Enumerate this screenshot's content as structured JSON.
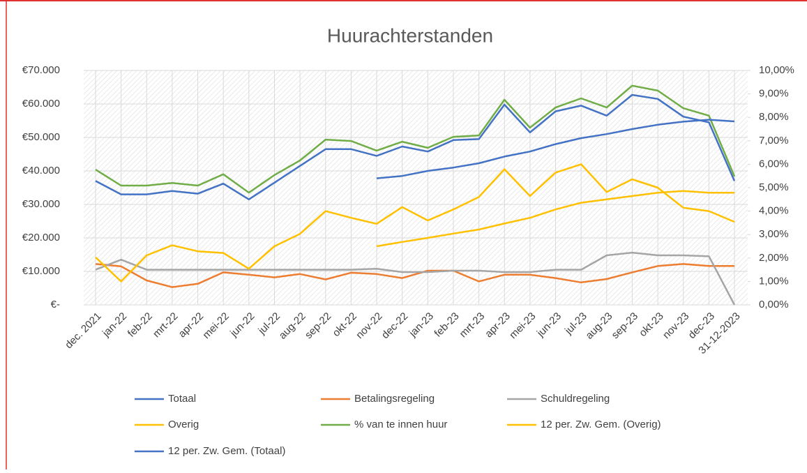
{
  "chart_data": {
    "type": "line",
    "title": "Huurachterstanden",
    "categories": [
      "dec. 2021",
      "jan-22",
      "feb-22",
      "mrt-22",
      "apr-22",
      "mei-22",
      "jun-22",
      "jul-22",
      "aug-22",
      "sep-22",
      "okt-22",
      "nov-22",
      "dec-22",
      "jan-23",
      "feb-23",
      "mrt-23",
      "apr-23",
      "mei-23",
      "jun-23",
      "jul-23",
      "aug-23",
      "sep-23",
      "okt-23",
      "nov-23",
      "dec-23",
      "31-12-2023"
    ],
    "series": [
      {
        "name": "Totaal",
        "color": "#4472c4",
        "values": [
          37000,
          33000,
          33000,
          34000,
          33200,
          36200,
          31500,
          36500,
          41500,
          46500,
          46500,
          44500,
          47300,
          45800,
          49200,
          49500,
          59800,
          51500,
          57800,
          59500,
          56500,
          62700,
          61500,
          56200,
          54500,
          37000
        ]
      },
      {
        "name": "Betalingsregeling",
        "color": "#ed7d31",
        "values": [
          12200,
          11500,
          7300,
          5300,
          6300,
          9700,
          9000,
          8200,
          9200,
          7600,
          9600,
          9200,
          8000,
          10200,
          10200,
          7000,
          9000,
          9000,
          8000,
          6700,
          7700,
          9700,
          11600,
          12200,
          11600,
          11600
        ]
      },
      {
        "name": "Schuldregeling",
        "color": "#a5a5a5",
        "values": [
          10500,
          13500,
          10500,
          10500,
          10500,
          10500,
          10500,
          10500,
          10500,
          10500,
          10500,
          10800,
          9800,
          9800,
          10200,
          10200,
          9800,
          9800,
          10500,
          10500,
          14800,
          15600,
          14800,
          14800,
          14500,
          0
        ]
      },
      {
        "name": "Overig",
        "color": "#ffc000",
        "values": [
          14200,
          7000,
          14800,
          17800,
          16000,
          15500,
          10800,
          17500,
          21200,
          28000,
          26000,
          24200,
          29200,
          25200,
          28500,
          32200,
          40500,
          32500,
          39500,
          42000,
          33700,
          37500,
          35000,
          29000,
          28000,
          24800
        ]
      },
      {
        "name": "% van te innen huur",
        "color": "#70ad47",
        "axis": "y2",
        "values": [
          5.77,
          5.09,
          5.09,
          5.2,
          5.09,
          5.57,
          4.79,
          5.54,
          6.16,
          7.05,
          6.99,
          6.58,
          6.96,
          6.7,
          7.17,
          7.23,
          8.75,
          7.56,
          8.42,
          8.81,
          8.42,
          9.35,
          9.14,
          8.39,
          8.07,
          5.48
        ]
      },
      {
        "name": "12 per. Zw. Gem. (Overig)",
        "color": "#ffc000",
        "values": [
          null,
          null,
          null,
          null,
          null,
          null,
          null,
          null,
          null,
          null,
          null,
          17500,
          18800,
          20000,
          21300,
          22500,
          24300,
          26000,
          28500,
          30500,
          31500,
          32500,
          33500,
          34000,
          33500,
          33500
        ]
      },
      {
        "name": "12 per. Zw. Gem. (Totaal)",
        "color": "#4472c4",
        "values": [
          null,
          null,
          null,
          null,
          null,
          null,
          null,
          null,
          null,
          null,
          null,
          37800,
          38500,
          40000,
          41000,
          42300,
          44300,
          45800,
          48000,
          49800,
          51000,
          52500,
          53800,
          54700,
          55300,
          54800
        ]
      }
    ],
    "ylim": [
      0,
      70000
    ],
    "yticks": [
      {
        "value": 0,
        "label": "€-"
      },
      {
        "value": 10000,
        "label": "€10.000"
      },
      {
        "value": 20000,
        "label": "€20.000"
      },
      {
        "value": 30000,
        "label": "€30.000"
      },
      {
        "value": 40000,
        "label": "€40.000"
      },
      {
        "value": 50000,
        "label": "€50.000"
      },
      {
        "value": 60000,
        "label": "€60.000"
      },
      {
        "value": 70000,
        "label": "€70.000"
      }
    ],
    "y2lim": [
      0,
      10
    ],
    "y2ticks": [
      {
        "value": 0,
        "label": "0,00%"
      },
      {
        "value": 1,
        "label": "1,00%"
      },
      {
        "value": 2,
        "label": "2,00%"
      },
      {
        "value": 3,
        "label": "3,00%"
      },
      {
        "value": 4,
        "label": "4,00%"
      },
      {
        "value": 5,
        "label": "5,00%"
      },
      {
        "value": 6,
        "label": "6,00%"
      },
      {
        "value": 7,
        "label": "7,00%"
      },
      {
        "value": 8,
        "label": "8,00%"
      },
      {
        "value": 9,
        "label": "9,00%"
      },
      {
        "value": 10,
        "label": "10,00%"
      }
    ],
    "grid": true
  }
}
